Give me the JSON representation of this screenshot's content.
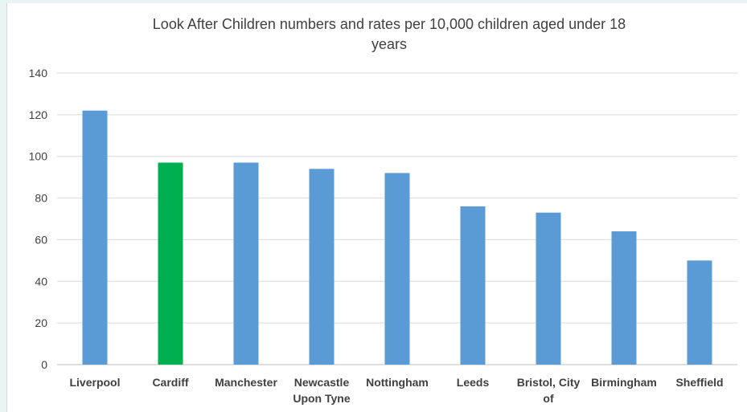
{
  "chart_data": {
    "type": "bar",
    "title": "Look After Children numbers and rates per 10,000 children aged under 18 years",
    "title_lines": [
      "Look After Children numbers and rates per 10,000 children aged under 18",
      "years"
    ],
    "categories": [
      "Liverpool",
      "Cardiff",
      "Manchester",
      "Newcastle Upon Tyne",
      "Nottingham",
      "Leeds",
      "Bristol, City of",
      "Birmingham",
      "Sheffield"
    ],
    "category_lines": [
      [
        "Liverpool"
      ],
      [
        "Cardiff"
      ],
      [
        "Manchester"
      ],
      [
        "Newcastle",
        "Upon Tyne"
      ],
      [
        "Nottingham"
      ],
      [
        "Leeds"
      ],
      [
        "Bristol, City",
        "of"
      ],
      [
        "Birmingham"
      ],
      [
        "Sheffield"
      ]
    ],
    "values": [
      122,
      97,
      97,
      94,
      92,
      76,
      73,
      64,
      50
    ],
    "bar_colors": [
      "#5b9bd5",
      "#00b050",
      "#5b9bd5",
      "#5b9bd5",
      "#5b9bd5",
      "#5b9bd5",
      "#5b9bd5",
      "#5b9bd5",
      "#5b9bd5"
    ],
    "ylim": [
      0,
      140
    ],
    "yticks": [
      0,
      20,
      40,
      60,
      80,
      100,
      120,
      140
    ],
    "grid": true,
    "legend": "none",
    "xlabel": "",
    "ylabel": ""
  }
}
